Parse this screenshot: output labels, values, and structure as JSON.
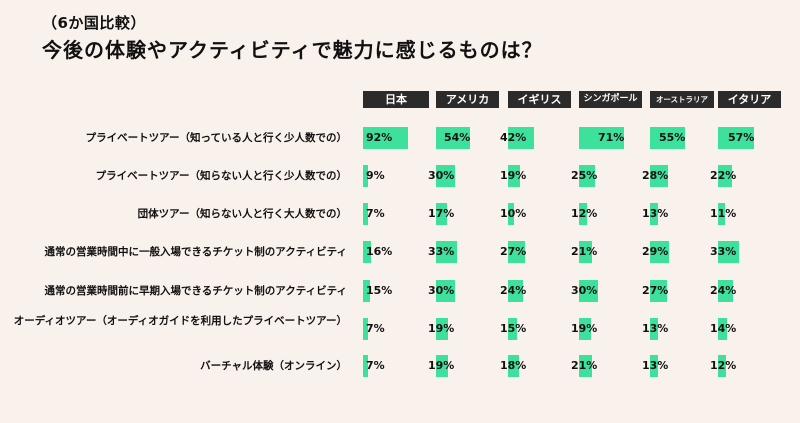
{
  "subtitle": "（6か国比較）",
  "title": "今後の体験やアクティビティで魅力に感じるものは？",
  "chart_data": {
    "type": "bar",
    "title": "今後の体験やアクティビティで魅力に感じるものは？",
    "subtitle": "（6か国比較）",
    "countries": [
      "日本",
      "アメリカ",
      "イギリス",
      "シンガポール",
      "オーストラリア",
      "イタリア"
    ],
    "categories": [
      "プライベートツアー（知っている人と行く少人数での）",
      "プライベートツアー（知らない人と行く少人数での）",
      "団体ツアー（知らない人と行く大人数での）",
      "通常の営業時間中に一般入場できるチケット制のアクティビティ",
      "通常の営業時間前に早期入場できるチケット制のアクティビティ",
      "オーディオツアー（オーディオガイドを利用したプライベートツアー）",
      "バーチャル体験（オンライン）"
    ],
    "series": [
      {
        "name": "日本",
        "values": [
          92,
          9,
          7,
          16,
          15,
          7,
          7
        ]
      },
      {
        "name": "アメリカ",
        "values": [
          54,
          30,
          17,
          33,
          30,
          19,
          19
        ]
      },
      {
        "name": "イギリス",
        "values": [
          42,
          19,
          10,
          27,
          24,
          15,
          18
        ]
      },
      {
        "name": "シンガポール",
        "values": [
          71,
          25,
          12,
          21,
          30,
          19,
          21
        ]
      },
      {
        "name": "オーストラリア",
        "values": [
          55,
          28,
          13,
          29,
          27,
          13,
          13
        ]
      },
      {
        "name": "イタリア",
        "values": [
          57,
          22,
          11,
          33,
          24,
          14,
          12
        ]
      }
    ],
    "value_suffix": "%",
    "bar_color": "#3de19c"
  }
}
